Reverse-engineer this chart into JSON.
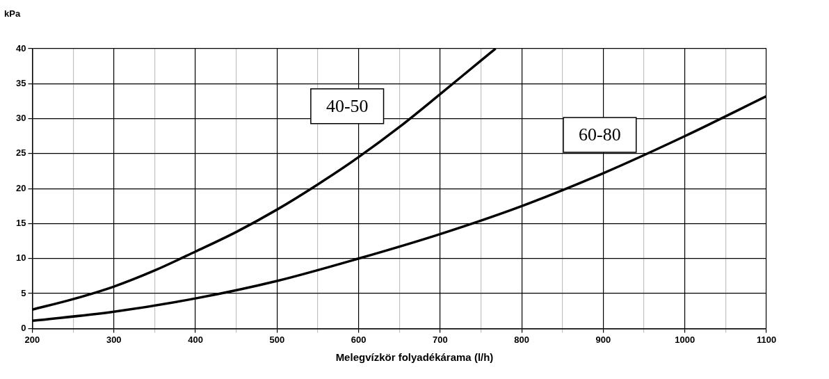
{
  "chart_data": {
    "type": "line",
    "xlabel": "Melegvízkör folyadékárama (l/h)",
    "ylabel": "kPa",
    "series": [
      {
        "name": "40-50",
        "color": "#000000",
        "x": [
          200,
          250,
          300,
          350,
          400,
          450,
          500,
          550,
          600,
          650,
          700,
          750,
          768
        ],
        "values": [
          2.7,
          4.2,
          6,
          8.3,
          11,
          13.8,
          17,
          20.6,
          24.5,
          28.8,
          33.5,
          38.3,
          40
        ]
      },
      {
        "name": "60-80",
        "color": "#000000",
        "x": [
          200,
          300,
          400,
          500,
          600,
          700,
          800,
          900,
          1000,
          1100
        ],
        "values": [
          1.1,
          2.4,
          4.3,
          6.8,
          10,
          13.5,
          17.5,
          22.2,
          27.5,
          33.2
        ]
      }
    ],
    "xlim": [
      200,
      1100
    ],
    "ylim": [
      0,
      40
    ],
    "xticks": [
      200,
      {
        "value": 250,
        "label": null
      },
      300,
      {
        "value": 350,
        "label": null
      },
      400,
      {
        "value": 450,
        "label": null
      },
      500,
      {
        "value": 550,
        "label": null
      },
      600,
      {
        "value": 650,
        "label": null
      },
      700,
      {
        "value": 750,
        "label": null
      },
      800,
      {
        "value": 850,
        "label": null
      },
      900,
      {
        "value": 950,
        "label": null
      },
      1000,
      {
        "value": 1050,
        "label": null
      },
      1100
    ],
    "yticks": [
      0,
      5,
      10,
      15,
      20,
      25,
      30,
      35,
      40
    ],
    "grid": true,
    "marker": "none",
    "line_style": "solid"
  }
}
